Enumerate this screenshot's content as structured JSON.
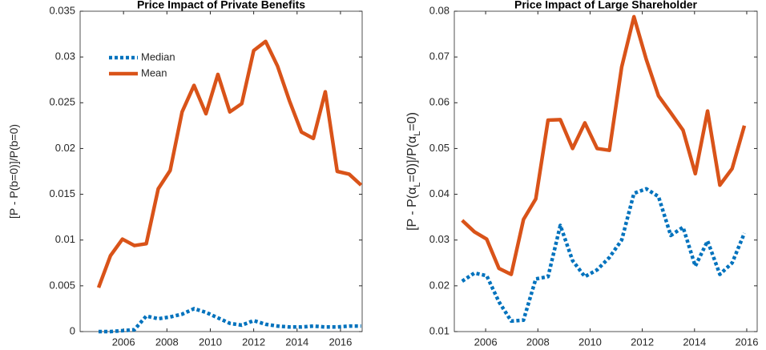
{
  "chart_data": [
    {
      "type": "line",
      "title": "Price Impact of Private Benefits",
      "ylabel": [
        "[P - P(b=0)]/P(b=0)"
      ],
      "x": [
        2004.85,
        2005.4,
        2005.95,
        2006.5,
        2007.05,
        2007.6,
        2008.15,
        2008.7,
        2009.25,
        2009.8,
        2010.35,
        2010.9,
        2011.45,
        2012.0,
        2012.55,
        2013.1,
        2013.65,
        2014.2,
        2014.75,
        2015.3,
        2015.85,
        2016.4,
        2016.95
      ],
      "series": [
        {
          "name": "Median",
          "color": "#0072bd",
          "dashed": true,
          "values": [
            0,
            0,
            0.0001,
            0.0002,
            0.0017,
            0.0014,
            0.0016,
            0.0019,
            0.0025,
            0.0021,
            0.0015,
            0.0009,
            0.0007,
            0.0012,
            0.0008,
            0.0006,
            0.0005,
            0.0005,
            0.0006,
            0.0005,
            0.0005,
            0.0006,
            0.0006
          ]
        },
        {
          "name": "Mean",
          "color": "#d95319",
          "dashed": false,
          "values": [
            0.0048,
            0.0083,
            0.0101,
            0.0094,
            0.0096,
            0.0156,
            0.0176,
            0.024,
            0.0269,
            0.0238,
            0.0281,
            0.024,
            0.0249,
            0.0307,
            0.0317,
            0.029,
            0.0252,
            0.0218,
            0.0211,
            0.0262,
            0.0175,
            0.0172,
            0.016
          ]
        }
      ],
      "xlim": [
        2004,
        2017
      ],
      "xticks": [
        2006,
        2008,
        2010,
        2012,
        2014,
        2016
      ],
      "ylim": [
        0,
        0.035
      ],
      "yticks": [
        0,
        0.005,
        0.01,
        0.015,
        0.02,
        0.025,
        0.03,
        0.035
      ],
      "legend": "upper-left"
    },
    {
      "type": "line",
      "title": "Price Impact of Large Shareholder",
      "ylabel": [
        "[P - P(",
        "α",
        "L",
        "=0)]/P(",
        "α",
        "L",
        "=0)"
      ],
      "x": [
        2005.1,
        2005.57,
        2006.04,
        2006.51,
        2006.98,
        2007.45,
        2007.92,
        2008.39,
        2008.86,
        2009.33,
        2009.8,
        2010.27,
        2010.74,
        2011.21,
        2011.68,
        2012.15,
        2012.62,
        2013.09,
        2013.56,
        2014.03,
        2014.5,
        2014.97,
        2015.44,
        2015.91
      ],
      "series": [
        {
          "color": "#0072bd",
          "dashed": true,
          "values": [
            0.021,
            0.0228,
            0.0222,
            0.0165,
            0.0123,
            0.0125,
            0.0215,
            0.022,
            0.0332,
            0.0255,
            0.022,
            0.0235,
            0.0262,
            0.03,
            0.0402,
            0.0412,
            0.0395,
            0.031,
            0.0328,
            0.0243,
            0.0298,
            0.0225,
            0.025,
            0.0315
          ]
        },
        {
          "color": "#d95319",
          "dashed": false,
          "values": [
            0.0343,
            0.0318,
            0.0302,
            0.0238,
            0.0225,
            0.0345,
            0.039,
            0.0562,
            0.0563,
            0.05,
            0.0556,
            0.05,
            0.0496,
            0.0678,
            0.0788,
            0.0695,
            0.0615,
            0.0578,
            0.054,
            0.0445,
            0.0582,
            0.042,
            0.0456,
            0.055
          ]
        }
      ],
      "xlim": [
        2004.8,
        2016.4
      ],
      "xticks": [
        2006,
        2008,
        2010,
        2012,
        2014,
        2016
      ],
      "ylim": [
        0.01,
        0.08
      ],
      "yticks": [
        0.01,
        0.02,
        0.03,
        0.04,
        0.05,
        0.06,
        0.07,
        0.08
      ]
    }
  ]
}
